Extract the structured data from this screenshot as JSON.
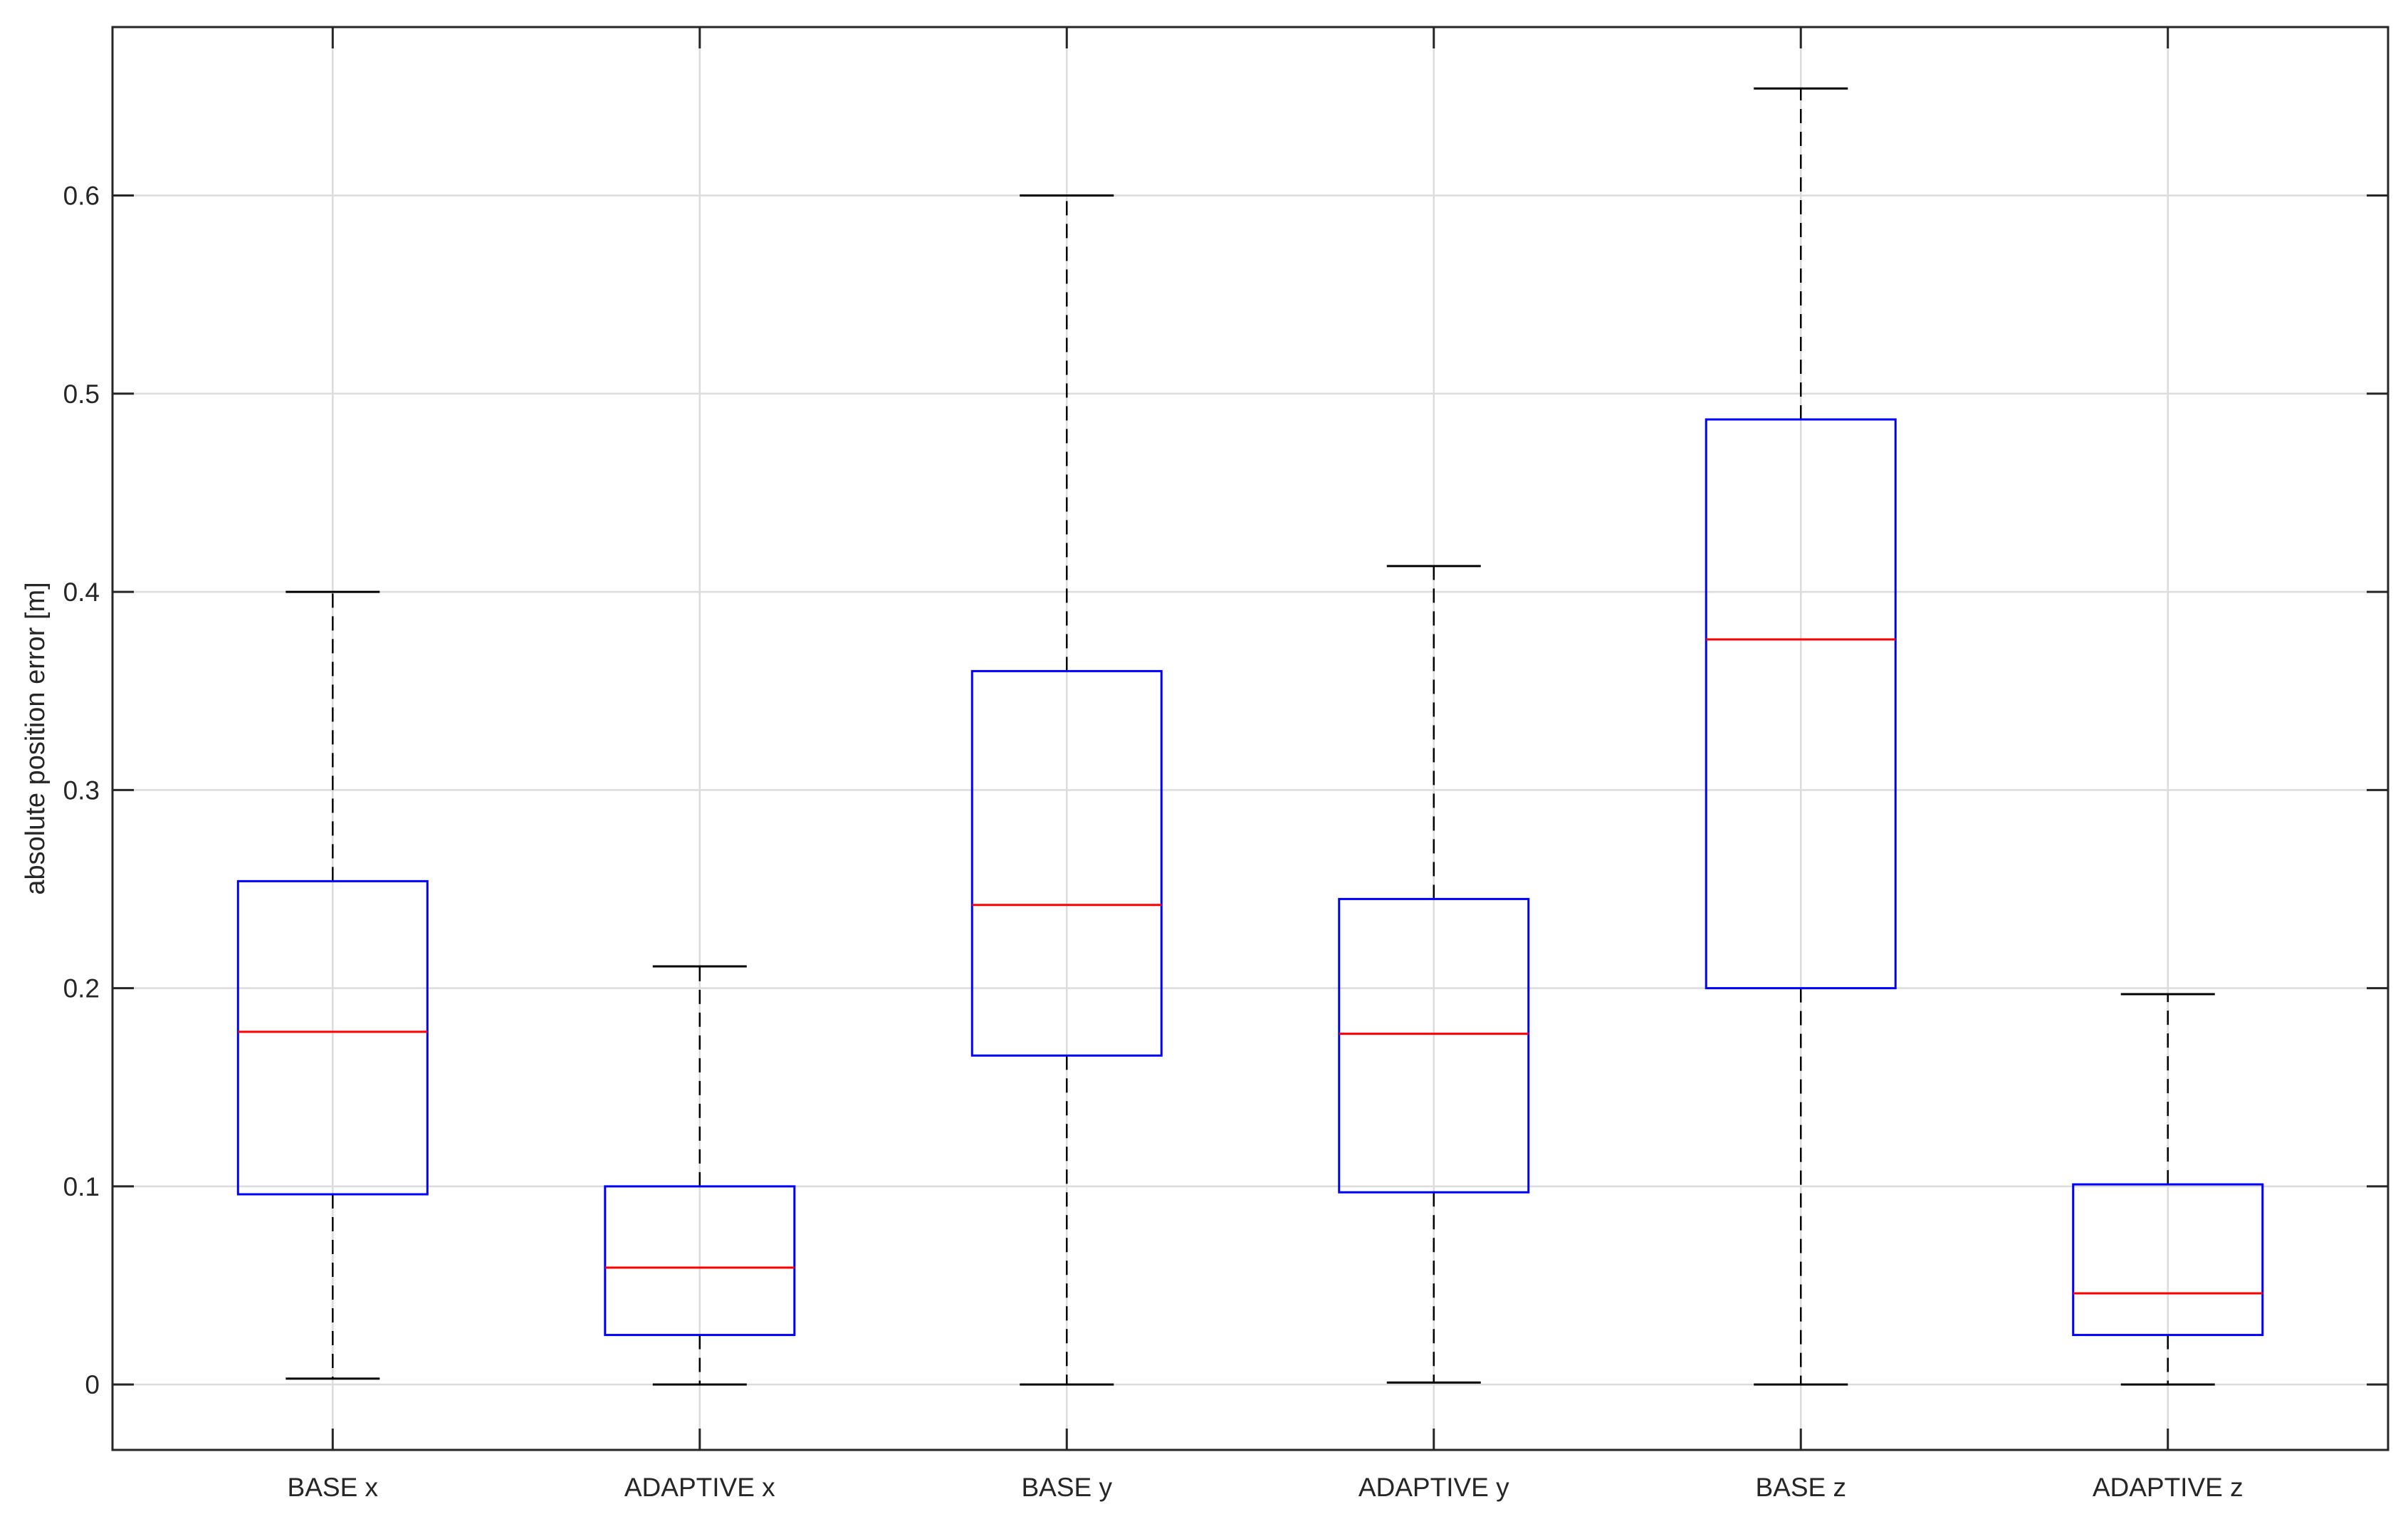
{
  "chart_data": {
    "type": "box",
    "title": "",
    "xlabel": "",
    "ylabel": "absolute position error [m]",
    "ylim": [
      -0.033,
      0.685
    ],
    "yticks": [
      0,
      0.1,
      0.2,
      0.3,
      0.4,
      0.5,
      0.6
    ],
    "ytick_labels": [
      "0",
      "0.1",
      "0.2",
      "0.3",
      "0.4",
      "0.5",
      "0.6"
    ],
    "grid": true,
    "categories": [
      "BASE x",
      "ADAPTIVE x",
      "BASE y",
      "ADAPTIVE y",
      "BASE z",
      "ADAPTIVE z"
    ],
    "boxes": [
      {
        "label": "BASE x",
        "whisker_low": 0.003,
        "q1": 0.096,
        "median": 0.178,
        "q3": 0.254,
        "whisker_high": 0.4
      },
      {
        "label": "ADAPTIVE x",
        "whisker_low": 0.0,
        "q1": 0.025,
        "median": 0.059,
        "q3": 0.1,
        "whisker_high": 0.211
      },
      {
        "label": "BASE y",
        "whisker_low": 0.0,
        "q1": 0.166,
        "median": 0.242,
        "q3": 0.36,
        "whisker_high": 0.6
      },
      {
        "label": "ADAPTIVE y",
        "whisker_low": 0.001,
        "q1": 0.097,
        "median": 0.177,
        "q3": 0.245,
        "whisker_high": 0.413
      },
      {
        "label": "BASE z",
        "whisker_low": 0.0,
        "q1": 0.2,
        "median": 0.376,
        "q3": 0.487,
        "whisker_high": 0.654
      },
      {
        "label": "ADAPTIVE z",
        "whisker_low": 0.0,
        "q1": 0.025,
        "median": 0.046,
        "q3": 0.101,
        "whisker_high": 0.197
      }
    ],
    "colors": {
      "box": "#0000ff",
      "median": "#ff0000",
      "whisker": "#000000",
      "grid": "#dcdcdc",
      "axes": "#262626"
    }
  }
}
